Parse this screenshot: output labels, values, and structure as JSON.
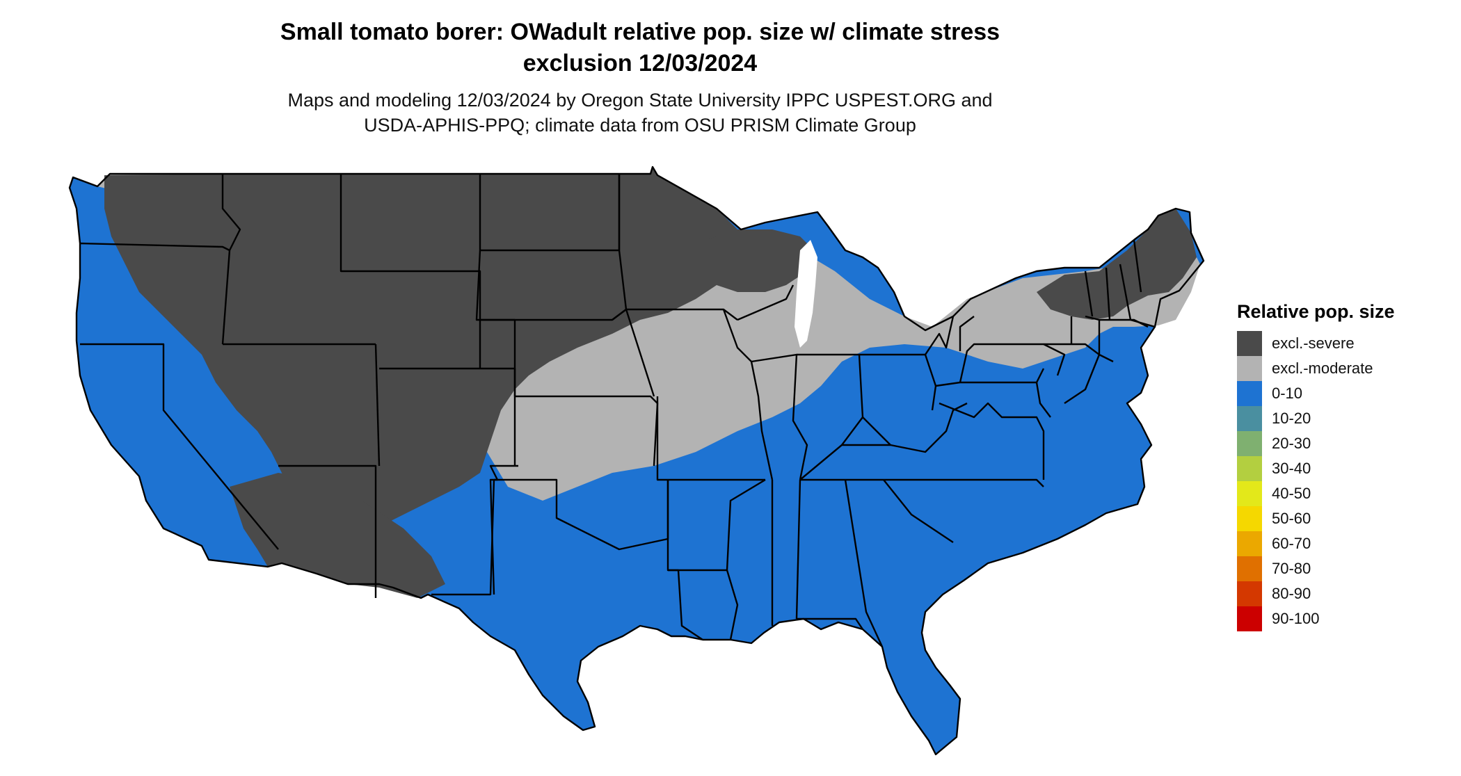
{
  "title": {
    "line1": "Small tomato borer: OWadult relative pop. size w/ climate stress",
    "line2": "exclusion 12/03/2024"
  },
  "subtitle": {
    "line1": "Maps and modeling 12/03/2024 by Oregon State University IPPC USPEST.ORG and",
    "line2": "USDA-APHIS-PPQ; climate data from OSU PRISM Climate Group"
  },
  "colors": {
    "excl_severe": "#4a4a4a",
    "excl_moderate": "#b3b3b3",
    "zero_ten": "#1e73d2",
    "border": "#000000"
  },
  "legend": {
    "title": "Relative pop. size",
    "items": [
      {
        "label": "excl.-severe",
        "color": "#4a4a4a"
      },
      {
        "label": "excl.-moderate",
        "color": "#b3b3b3"
      },
      {
        "label": "0-10",
        "color": "#1e73d2"
      },
      {
        "label": "10-20",
        "color": "#4a8fa0"
      },
      {
        "label": "20-30",
        "color": "#7fb070"
      },
      {
        "label": "30-40",
        "color": "#b3cf40"
      },
      {
        "label": "40-50",
        "color": "#e3e81a"
      },
      {
        "label": "50-60",
        "color": "#f5d800"
      },
      {
        "label": "60-70",
        "color": "#eba800"
      },
      {
        "label": "70-80",
        "color": "#e07000"
      },
      {
        "label": "80-90",
        "color": "#d43800"
      },
      {
        "label": "90-100",
        "color": "#cc0000"
      }
    ]
  }
}
